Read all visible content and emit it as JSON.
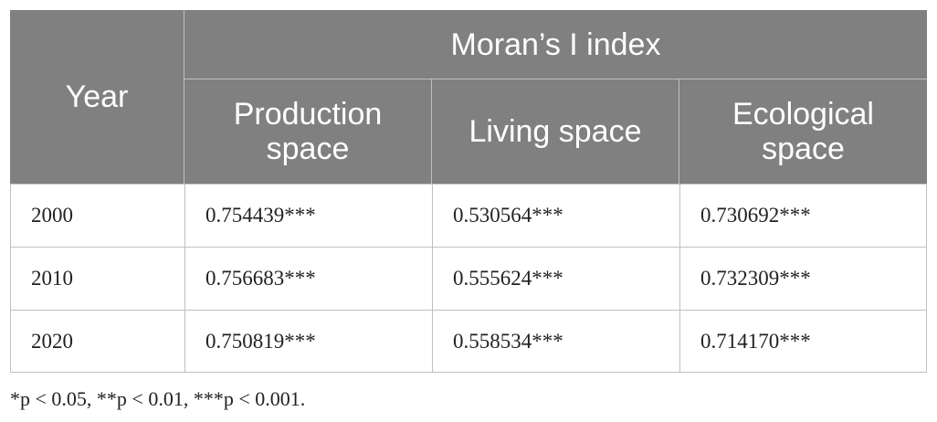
{
  "table": {
    "header": {
      "year": "Year",
      "group": "Moran’s I index",
      "columns": [
        "Production space",
        "Living space",
        "Ecological space"
      ]
    },
    "rows": [
      [
        "2000",
        "0.754439***",
        "0.530564***",
        "0.730692***"
      ],
      [
        "2010",
        "0.756683***",
        "0.555624***",
        "0.732309***"
      ],
      [
        "2020",
        "0.750819***",
        "0.558534***",
        "0.714170***"
      ]
    ]
  },
  "footnote": "*p < 0.05, **p < 0.01, ***p < 0.001."
}
